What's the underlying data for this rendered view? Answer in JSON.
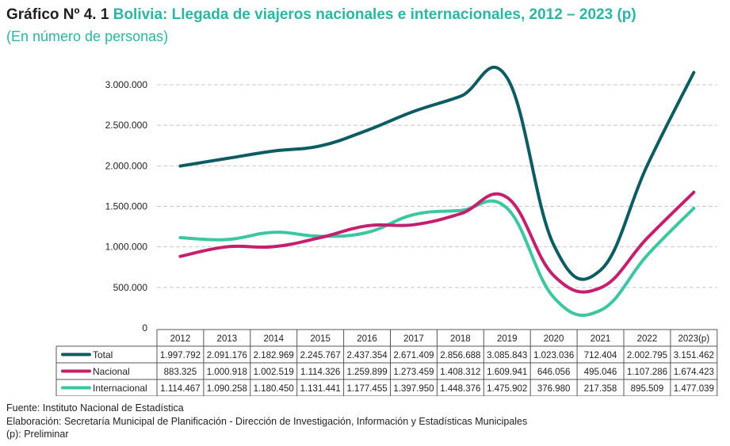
{
  "header": {
    "prefix": "Gráfico Nº 4. 1",
    "title": "Bolivia: Llegada de viajeros nacionales e internacionales, 2012 – 2023 (p)",
    "subtitle": "(En número de personas)"
  },
  "colors": {
    "Total": "#0d5c61",
    "Nacional": "#c4206e",
    "Internacional": "#3cc6a2",
    "grid": "#c8c8c8"
  },
  "chart_data": {
    "type": "line",
    "categories": [
      "2012",
      "2013",
      "2014",
      "2015",
      "2016",
      "2017",
      "2018",
      "2019",
      "2020",
      "2021",
      "2022",
      "2023(p)"
    ],
    "ylim": [
      0,
      3000000
    ],
    "yticks": [
      0,
      500000,
      1000000,
      1500000,
      2000000,
      2500000,
      3000000
    ],
    "ytick_labels": [
      "0",
      "500.000",
      "1.000.000",
      "1.500.000",
      "2.000.000",
      "2.500.000",
      "3.000.000"
    ],
    "grid": "horizontal dashed",
    "series": [
      {
        "name": "Total",
        "values": [
          1997792,
          2091176,
          2182969,
          2245767,
          2437354,
          2671409,
          2856688,
          3085843,
          1023036,
          712404,
          2002795,
          3151462
        ],
        "labels": [
          "1.997.792",
          "2.091.176",
          "2.182.969",
          "2.245.767",
          "2.437.354",
          "2.671.409",
          "2.856.688",
          "3.085.843",
          "1.023.036",
          "712.404",
          "2.002.795",
          "3.151.462"
        ]
      },
      {
        "name": "Nacional",
        "values": [
          883325,
          1000918,
          1002519,
          1114326,
          1259899,
          1273459,
          1408312,
          1609941,
          646056,
          495046,
          1107286,
          1674423
        ],
        "labels": [
          "883.325",
          "1.000.918",
          "1.002.519",
          "1.114.326",
          "1.259.899",
          "1.273.459",
          "1.408.312",
          "1.609.941",
          "646.056",
          "495.046",
          "1.107.286",
          "1.674.423"
        ]
      },
      {
        "name": "Internacional",
        "values": [
          1114467,
          1090258,
          1180450,
          1131441,
          1177455,
          1397950,
          1448376,
          1475902,
          376980,
          217358,
          895509,
          1477039
        ],
        "labels": [
          "1.114.467",
          "1.090.258",
          "1.180.450",
          "1.131.441",
          "1.177.455",
          "1.397.950",
          "1.448.376",
          "1.475.902",
          "376.980",
          "217.358",
          "895.509",
          "1.477.039"
        ]
      }
    ]
  },
  "footer": {
    "source": "Fuente: Instituto Nacional de Estadística",
    "elaboration": "Elaboración: Secretaría Municipal de Planificación - Dirección de Investigación, Información y Estadísticas Municipales",
    "note": "(p): Preliminar"
  }
}
